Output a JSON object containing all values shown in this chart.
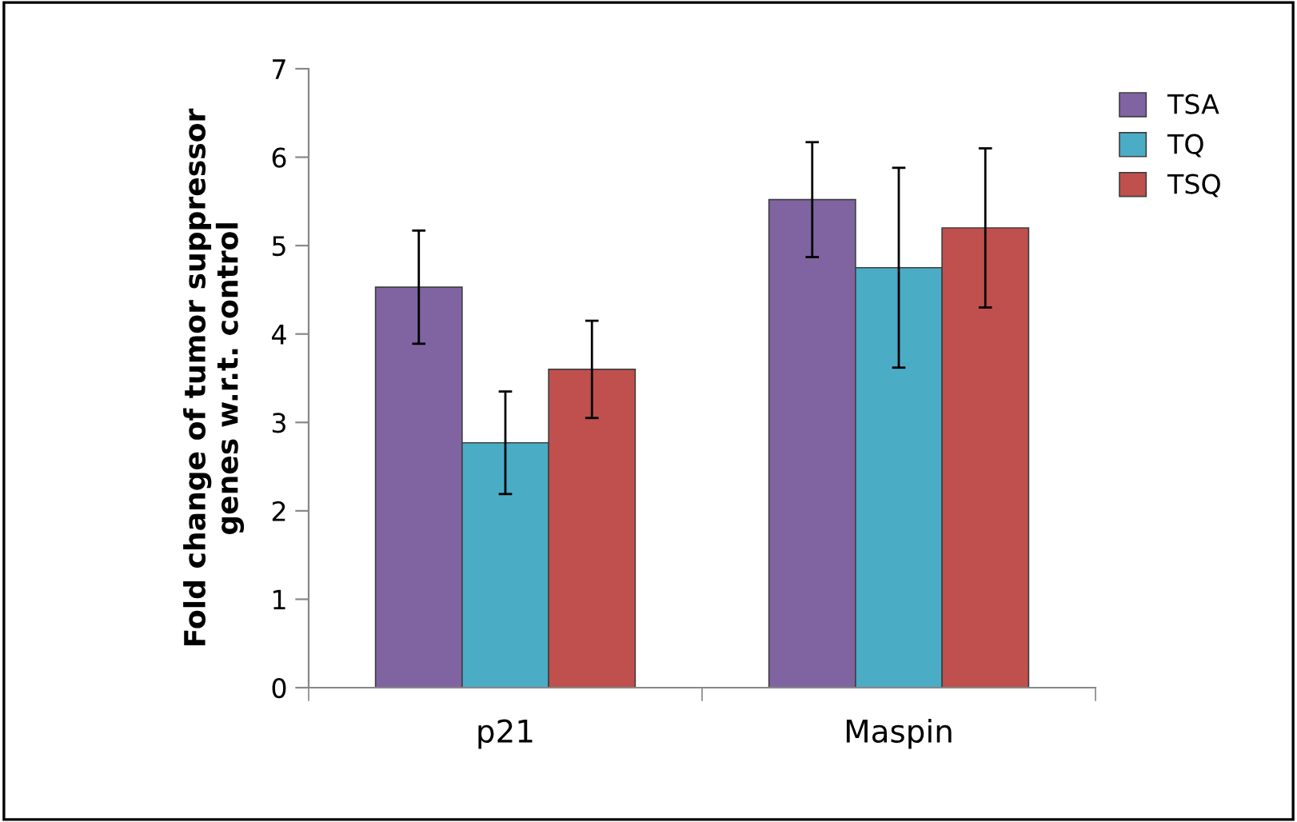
{
  "chart_data": {
    "type": "bar",
    "ylabel": "Fold change of tumor suppressor\ngenes w.r.t. control",
    "categories": [
      "p21",
      "Maspin"
    ],
    "series": [
      {
        "name": "TSA",
        "color": "#8064a2",
        "values": [
          4.53,
          5.52
        ],
        "errors": [
          0.64,
          0.65
        ]
      },
      {
        "name": "TQ",
        "color": "#4bacc6",
        "values": [
          2.77,
          4.75
        ],
        "errors": [
          0.58,
          1.13
        ]
      },
      {
        "name": "TSQ",
        "color": "#c0504d",
        "values": [
          3.6,
          5.2
        ],
        "errors": [
          0.55,
          0.9
        ]
      }
    ],
    "ylim": [
      0,
      7
    ],
    "yticks": [
      0,
      1,
      2,
      3,
      4,
      5,
      6,
      7
    ],
    "grid": false,
    "legend": "top right"
  }
}
